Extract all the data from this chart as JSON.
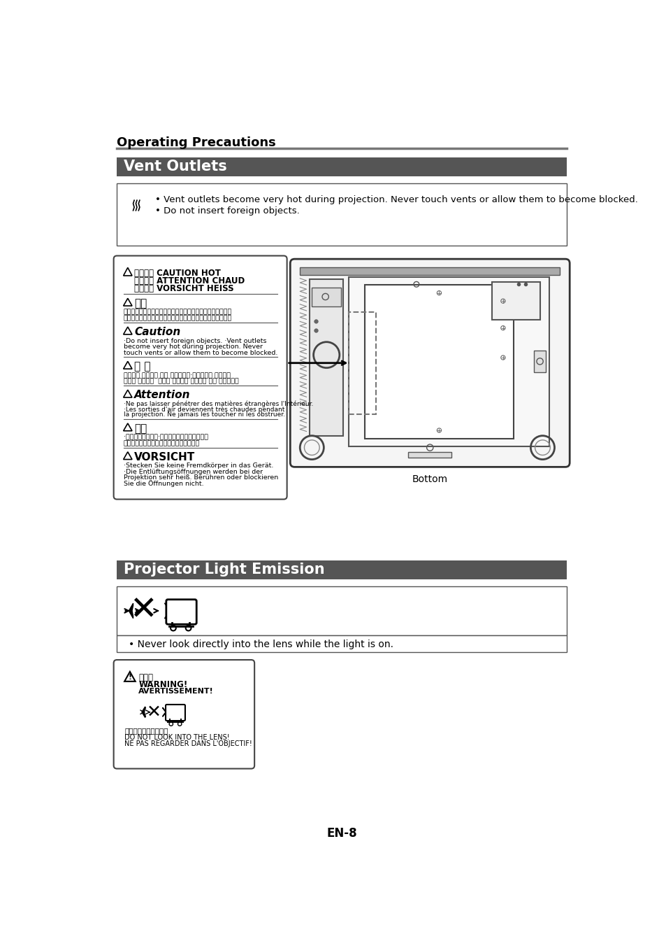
{
  "page_bg": "#ffffff",
  "header_title": "Operating Precautions",
  "header_line_color": "#666666",
  "section1_title": "Vent Outlets",
  "section2_title": "Projector Light Emission",
  "section_header_bg": "#555555",
  "section_header_text_color": "#ffffff",
  "warn1_line1": "• Vent outlets become very hot during projection. Never touch vents or allow them to become blocked.",
  "warn1_line2": "• Do not insert foreign objects.",
  "warn2_line1": "• Never look directly into the lens while the light is on.",
  "label_bottom": "Bottom",
  "footer_text": "EN-8"
}
